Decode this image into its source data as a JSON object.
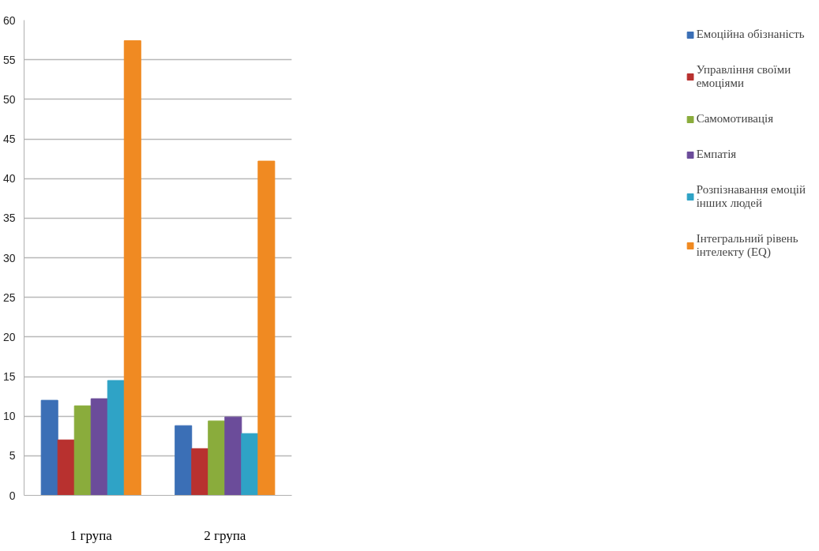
{
  "chart_data": {
    "type": "bar",
    "categories": [
      "1 група",
      "2 група"
    ],
    "series": [
      {
        "name": "Емоційна обізнаність",
        "color": "#3b6fb6",
        "values": [
          12,
          8.8
        ]
      },
      {
        "name": "Управління своїми емоціями",
        "color": "#b8312f",
        "values": [
          7,
          5.9
        ]
      },
      {
        "name": "Самомотивація",
        "color": "#8aac3c",
        "values": [
          11.3,
          9.4
        ]
      },
      {
        "name": "Емпатія",
        "color": "#6b4c9a",
        "values": [
          12.2,
          9.9
        ]
      },
      {
        "name": "Розпізнавання емоцій інших людей",
        "color": "#2fa3c6",
        "values": [
          14.5,
          7.8
        ]
      },
      {
        "name": "Інтегральний рівень інтелекту (EQ)",
        "color": "#f08a22",
        "values": [
          57.4,
          42.2
        ]
      }
    ],
    "ylim": [
      0,
      60
    ],
    "yticks": [
      0,
      5,
      10,
      15,
      20,
      25,
      30,
      35,
      40,
      45,
      50,
      55,
      60
    ],
    "grid": "y",
    "legend": "right"
  }
}
